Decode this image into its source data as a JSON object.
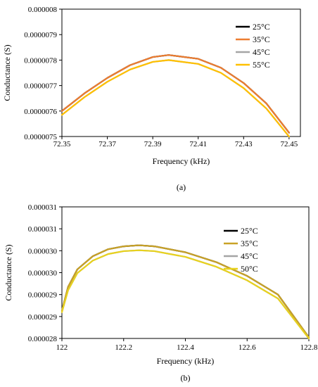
{
  "chart_data": [
    {
      "id": "a",
      "type": "line",
      "caption": "(a)",
      "xlabel": "Frequency (kHz)",
      "ylabel": "Conductance (S)",
      "xlim": [
        72.35,
        72.455
      ],
      "ylim": [
        7.5e-06,
        8e-06
      ],
      "xticks": [
        72.35,
        72.37,
        72.39,
        72.41,
        72.43,
        72.45
      ],
      "xtick_labels": [
        "72.35",
        "72.37",
        "72.39",
        "72.41",
        "72.43",
        "72.45"
      ],
      "yticks": [
        7.5e-06,
        7.6e-06,
        7.7e-06,
        7.8e-06,
        7.9e-06,
        8e-06
      ],
      "ytick_labels": [
        "0.0000075",
        "0.0000076",
        "0.0000077",
        "0.0000078",
        "0.0000079",
        "0.000008"
      ],
      "grid": false,
      "legend_position": "top-right",
      "series": [
        {
          "name": "25°C",
          "color": "#000000",
          "x": [
            72.35,
            72.36,
            72.37,
            72.38,
            72.39,
            72.397,
            72.41,
            72.42,
            72.43,
            72.44,
            72.45
          ],
          "y": [
            7.6e-06,
            7.67e-06,
            7.73e-06,
            7.78e-06,
            7.812e-06,
            7.82e-06,
            7.805e-06,
            7.77e-06,
            7.71e-06,
            7.63e-06,
            7.515e-06
          ]
        },
        {
          "name": "35°C",
          "color": "#ed7d31",
          "x": [
            72.35,
            72.36,
            72.37,
            72.38,
            72.39,
            72.397,
            72.41,
            72.42,
            72.43,
            72.44,
            72.45
          ],
          "y": [
            7.6e-06,
            7.67e-06,
            7.73e-06,
            7.78e-06,
            7.812e-06,
            7.82e-06,
            7.805e-06,
            7.77e-06,
            7.71e-06,
            7.63e-06,
            7.515e-06
          ]
        },
        {
          "name": "45°C",
          "color": "#a5a5a5",
          "x": [
            72.35,
            72.36,
            72.37,
            72.38,
            72.39,
            72.397,
            72.41,
            72.42,
            72.43,
            72.44,
            72.45
          ],
          "y": [
            7.585e-06,
            7.655e-06,
            7.715e-06,
            7.763e-06,
            7.793e-06,
            7.8e-06,
            7.785e-06,
            7.75e-06,
            7.69e-06,
            7.61e-06,
            7.5e-06
          ]
        },
        {
          "name": "55°C",
          "color": "#ffc000",
          "x": [
            72.35,
            72.36,
            72.37,
            72.38,
            72.39,
            72.397,
            72.41,
            72.42,
            72.43,
            72.44,
            72.45
          ],
          "y": [
            7.585e-06,
            7.655e-06,
            7.715e-06,
            7.763e-06,
            7.793e-06,
            7.8e-06,
            7.785e-06,
            7.75e-06,
            7.69e-06,
            7.61e-06,
            7.5e-06
          ]
        }
      ]
    },
    {
      "id": "b",
      "type": "line",
      "caption": "(b)",
      "xlabel": "Frequency (kHz)",
      "ylabel": "Conductance (S)",
      "xlim": [
        122,
        122.8
      ],
      "ylim": [
        0,
        6
      ],
      "xticks": [
        122,
        122.2,
        122.4,
        122.6,
        122.8
      ],
      "xtick_labels": [
        "122",
        "122.2",
        "122.4",
        "122.6",
        "122.8"
      ],
      "yticks": [
        0,
        1,
        2,
        3,
        4,
        5,
        6
      ],
      "ytick_labels": [
        "0.000028",
        "0.000029",
        "0.000029",
        "0.000030",
        "0.000030",
        "0.000031",
        "0.000031"
      ],
      "grid": false,
      "legend_position": "top-right",
      "series": [
        {
          "name": "25°C",
          "color": "#000000",
          "x": [
            122.0,
            122.02,
            122.05,
            122.1,
            122.15,
            122.2,
            122.25,
            122.3,
            122.4,
            122.5,
            122.6,
            122.7,
            122.8
          ],
          "y": [
            1.26,
            2.35,
            3.15,
            3.75,
            4.07,
            4.2,
            4.25,
            4.2,
            3.93,
            3.48,
            2.85,
            2.0,
            0.05
          ]
        },
        {
          "name": "35°C",
          "color": "#c9a227",
          "x": [
            122.0,
            122.02,
            122.05,
            122.1,
            122.15,
            122.2,
            122.25,
            122.3,
            122.4,
            122.5,
            122.6,
            122.7,
            122.8
          ],
          "y": [
            1.26,
            2.35,
            3.15,
            3.75,
            4.07,
            4.2,
            4.25,
            4.2,
            3.93,
            3.48,
            2.85,
            2.0,
            0.05
          ]
        },
        {
          "name": "45°C",
          "color": "#a5a5a5",
          "x": [
            122.0,
            122.02,
            122.05,
            122.1,
            122.15,
            122.2,
            122.25,
            122.3,
            122.4,
            122.5,
            122.6,
            122.7,
            122.8
          ],
          "y": [
            1.2,
            2.2,
            2.98,
            3.55,
            3.85,
            3.98,
            4.02,
            3.98,
            3.72,
            3.27,
            2.65,
            1.82,
            0.0
          ]
        },
        {
          "name": "50°C",
          "color": "#e8d21d",
          "x": [
            122.0,
            122.02,
            122.05,
            122.1,
            122.15,
            122.2,
            122.25,
            122.3,
            122.4,
            122.5,
            122.6,
            122.7,
            122.8
          ],
          "y": [
            1.2,
            2.2,
            2.98,
            3.55,
            3.85,
            3.98,
            4.02,
            3.98,
            3.72,
            3.27,
            2.65,
            1.82,
            0.0
          ]
        }
      ]
    }
  ]
}
